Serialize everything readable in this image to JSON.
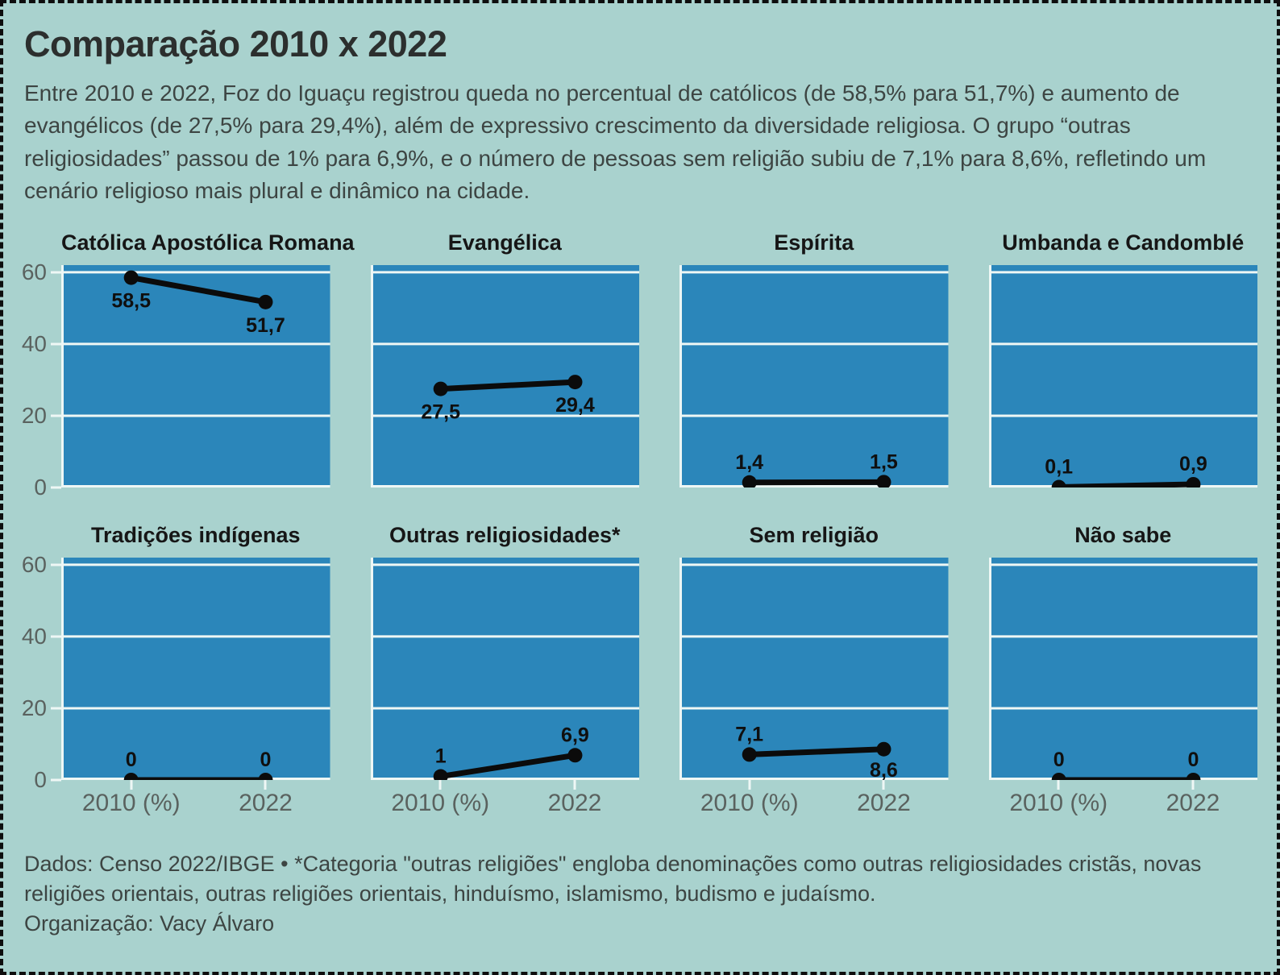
{
  "frame": {
    "background_color": "#a9d2ce",
    "border_color": "#0e0e0e"
  },
  "header": {
    "title": "Comparação 2010 x 2022",
    "description": "Entre 2010 e 2022, Foz do Iguaçu registrou queda no percentual de católicos (de 58,5% para 51,7%) e aumento de evangélicos (de 27,5% para 29,4%), além de expressivo crescimento da diversidade religiosa. O grupo “outras religiosidades” passou de 1% para 6,9%, e o número de pessoas sem religião subiu de 7,1% para 8,6%, refletindo um cenário religioso mais plural e dinâmico na cidade."
  },
  "chart_data": {
    "type": "line",
    "layout": "small-multiples 4 cols x 2 rows",
    "x_categories": [
      "2010 (%)",
      "2022"
    ],
    "ylim": [
      0,
      62
    ],
    "yticks": [
      0,
      20,
      40,
      60
    ],
    "grid": true,
    "legend": "none",
    "panel_fill_color": "#2b86ba",
    "gridline_color": "#eef7f5",
    "line_color": "#0b0b0b",
    "value_label_color": "#0f0f0f",
    "panels": [
      {
        "title": "Católica Apostólica Romana",
        "values": [
          58.5,
          51.7
        ],
        "labels": [
          "58,5",
          "51,7"
        ],
        "label_pos": [
          "below",
          "below"
        ]
      },
      {
        "title": "Evangélica",
        "values": [
          27.5,
          29.4
        ],
        "labels": [
          "27,5",
          "29,4"
        ],
        "label_pos": [
          "below",
          "below"
        ]
      },
      {
        "title": "Espírita",
        "values": [
          1.4,
          1.5
        ],
        "labels": [
          "1,4",
          "1,5"
        ],
        "label_pos": [
          "above",
          "above"
        ]
      },
      {
        "title": "Umbanda e Candomblé",
        "values": [
          0.1,
          0.9
        ],
        "labels": [
          "0,1",
          "0,9"
        ],
        "label_pos": [
          "above",
          "above"
        ]
      },
      {
        "title": "Tradições indígenas",
        "values": [
          0,
          0
        ],
        "labels": [
          "0",
          "0"
        ],
        "label_pos": [
          "above",
          "above"
        ]
      },
      {
        "title": "Outras religiosidades*",
        "values": [
          1,
          6.9
        ],
        "labels": [
          "1",
          "6,9"
        ],
        "label_pos": [
          "above",
          "above"
        ]
      },
      {
        "title": "Sem religião",
        "values": [
          7.1,
          8.6
        ],
        "labels": [
          "7,1",
          "8,6"
        ],
        "label_pos": [
          "above",
          "below"
        ]
      },
      {
        "title": "Não sabe",
        "values": [
          0,
          0
        ],
        "labels": [
          "0",
          "0"
        ],
        "label_pos": [
          "above",
          "above"
        ]
      }
    ]
  },
  "footer": {
    "source": "Dados: Censo 2022/IBGE • *Categoria \"outras religiões\" engloba denominações como outras religiosidades cristãs, novas religiões orientais, outras religiões orientais, hinduísmo, islamismo, budismo e judaísmo.",
    "organization": "Organização: Vacy Álvaro"
  }
}
